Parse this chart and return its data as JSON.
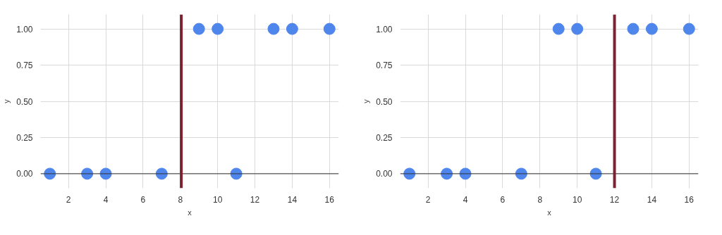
{
  "chart_data": [
    {
      "type": "scatter",
      "xlabel": "x",
      "ylabel": "y",
      "x": [
        1,
        3,
        4,
        7,
        9,
        10,
        11,
        13,
        14,
        16
      ],
      "series": [
        {
          "color": "#4f86ec",
          "values": [
            0,
            0,
            0,
            0,
            1,
            1,
            0,
            1,
            1,
            1
          ]
        }
      ],
      "xlim": [
        0.5,
        16.5
      ],
      "ylim": [
        -0.1,
        1.1
      ],
      "xticks": [
        2,
        4,
        6,
        8,
        10,
        12,
        14,
        16
      ],
      "yticks": [
        {
          "value": 0,
          "label": "0.00"
        },
        {
          "value": 0.25,
          "label": "0.25"
        },
        {
          "value": 0.5,
          "label": "0.50"
        },
        {
          "value": 0.75,
          "label": "0.75"
        },
        {
          "value": 1,
          "label": "1.00"
        }
      ],
      "grid": true,
      "marker": "circle",
      "ref_lines": [
        {
          "axis": "x",
          "value": 8.05,
          "color": "#7b2331"
        }
      ]
    },
    {
      "type": "scatter",
      "xlabel": "x",
      "ylabel": "y",
      "x": [
        1,
        3,
        4,
        7,
        9,
        10,
        11,
        13,
        14,
        16
      ],
      "series": [
        {
          "color": "#4f86ec",
          "values": [
            0,
            0,
            0,
            0,
            1,
            1,
            0,
            1,
            1,
            1
          ]
        }
      ],
      "xlim": [
        0.5,
        16.5
      ],
      "ylim": [
        -0.1,
        1.1
      ],
      "xticks": [
        2,
        4,
        6,
        8,
        10,
        12,
        14,
        16
      ],
      "yticks": [
        {
          "value": 0,
          "label": "0.00"
        },
        {
          "value": 0.25,
          "label": "0.25"
        },
        {
          "value": 0.5,
          "label": "0.50"
        },
        {
          "value": 0.75,
          "label": "0.75"
        },
        {
          "value": 1,
          "label": "1.00"
        }
      ],
      "grid": true,
      "marker": "circle",
      "ref_lines": [
        {
          "axis": "x",
          "value": 12,
          "color": "#7b2331"
        }
      ]
    }
  ]
}
